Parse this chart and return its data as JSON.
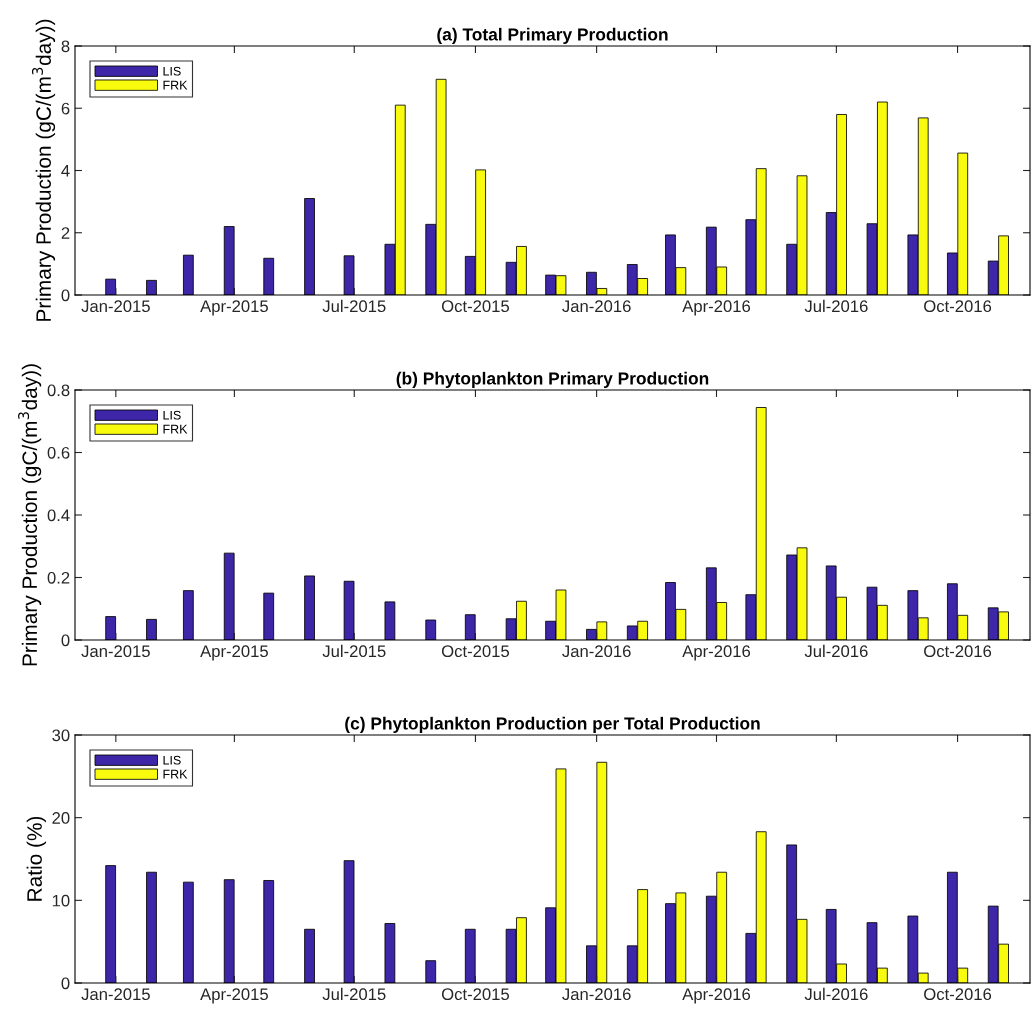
{
  "chart_data": [
    {
      "type": "bar",
      "title": "(a) Total Primary Production",
      "ylabel": "Primary Production (gC/(m$^{3}$day))",
      "x": [
        "2015-01",
        "2015-02",
        "2015-03",
        "2015-04",
        "2015-05",
        "2015-06",
        "2015-07",
        "2015-08",
        "2015-09",
        "2015-10",
        "2015-11",
        "2015-12",
        "2016-01",
        "2016-02",
        "2016-03",
        "2016-04",
        "2016-05",
        "2016-06",
        "2016-07",
        "2016-08",
        "2016-09",
        "2016-10",
        "2016-11"
      ],
      "series": [
        {
          "name": "LIS",
          "color": "#3d26a8",
          "values": [
            0.51,
            0.47,
            1.28,
            2.2,
            1.18,
            3.1,
            1.26,
            1.63,
            2.27,
            1.24,
            1.05,
            0.64,
            0.73,
            0.98,
            1.93,
            2.18,
            2.42,
            1.63,
            2.65,
            2.29,
            1.93,
            1.35,
            1.09
          ]
        },
        {
          "name": "FRK",
          "color": "#f9fb0e",
          "values": [
            null,
            null,
            null,
            null,
            null,
            null,
            null,
            6.1,
            6.93,
            4.02,
            1.56,
            0.62,
            0.21,
            0.53,
            0.88,
            0.9,
            4.06,
            3.83,
            5.8,
            6.2,
            5.69,
            4.56,
            1.9
          ]
        }
      ],
      "xlim": [
        "2014-12-01",
        "2016-11-25"
      ],
      "xticks": [
        {
          "value": "2015-01",
          "label": "Jan-2015"
        },
        {
          "value": "2015-04",
          "label": "Apr-2015"
        },
        {
          "value": "2015-07",
          "label": "Jul-2015"
        },
        {
          "value": "2015-10",
          "label": "Oct-2015"
        },
        {
          "value": "2016-01",
          "label": "Jan-2016"
        },
        {
          "value": "2016-04",
          "label": "Apr-2016"
        },
        {
          "value": "2016-07",
          "label": "Jul-2016"
        },
        {
          "value": "2016-10",
          "label": "Oct-2016"
        }
      ],
      "ylim": [
        0,
        8
      ],
      "yticks": [
        0,
        2,
        4,
        6,
        8
      ],
      "grid": false,
      "legend": "top left"
    },
    {
      "type": "bar",
      "title": "(b) Phytoplankton Primary Production",
      "ylabel": "Primary Production (gC/(m$^{3}$day))",
      "x": [
        "2015-01",
        "2015-02",
        "2015-03",
        "2015-04",
        "2015-05",
        "2015-06",
        "2015-07",
        "2015-08",
        "2015-09",
        "2015-10",
        "2015-11",
        "2015-12",
        "2016-01",
        "2016-02",
        "2016-03",
        "2016-04",
        "2016-05",
        "2016-06",
        "2016-07",
        "2016-08",
        "2016-09",
        "2016-10",
        "2016-11"
      ],
      "series": [
        {
          "name": "LIS",
          "color": "#3d26a8",
          "values": [
            0.075,
            0.066,
            0.158,
            0.278,
            0.15,
            0.205,
            0.188,
            0.122,
            0.064,
            0.081,
            0.068,
            0.06,
            0.034,
            0.045,
            0.184,
            0.231,
            0.145,
            0.272,
            0.237,
            0.169,
            0.158,
            0.18,
            0.103
          ]
        },
        {
          "name": "FRK",
          "color": "#f9fb0e",
          "values": [
            null,
            null,
            null,
            null,
            null,
            null,
            null,
            null,
            null,
            null,
            0.124,
            0.16,
            0.058,
            0.06,
            0.098,
            0.12,
            0.744,
            0.295,
            0.137,
            0.111,
            0.071,
            0.079,
            0.09
          ]
        }
      ],
      "xlim": [
        "2014-12-01",
        "2016-11-25"
      ],
      "xticks": [
        {
          "value": "2015-01",
          "label": "Jan-2015"
        },
        {
          "value": "2015-04",
          "label": "Apr-2015"
        },
        {
          "value": "2015-07",
          "label": "Jul-2015"
        },
        {
          "value": "2015-10",
          "label": "Oct-2015"
        },
        {
          "value": "2016-01",
          "label": "Jan-2016"
        },
        {
          "value": "2016-04",
          "label": "Apr-2016"
        },
        {
          "value": "2016-07",
          "label": "Jul-2016"
        },
        {
          "value": "2016-10",
          "label": "Oct-2016"
        }
      ],
      "ylim": [
        0,
        0.8
      ],
      "yticks": [
        0,
        0.2,
        0.4,
        0.6,
        0.8
      ],
      "grid": false,
      "legend": "top left"
    },
    {
      "type": "bar",
      "title": "(c) Phytoplankton Production per Total Production",
      "ylabel": "Ratio (%)",
      "x": [
        "2015-01",
        "2015-02",
        "2015-03",
        "2015-04",
        "2015-05",
        "2015-06",
        "2015-07",
        "2015-08",
        "2015-09",
        "2015-10",
        "2015-11",
        "2015-12",
        "2016-01",
        "2016-02",
        "2016-03",
        "2016-04",
        "2016-05",
        "2016-06",
        "2016-07",
        "2016-08",
        "2016-09",
        "2016-10",
        "2016-11"
      ],
      "series": [
        {
          "name": "LIS",
          "color": "#3d26a8",
          "values": [
            14.2,
            13.4,
            12.2,
            12.5,
            12.4,
            6.5,
            14.8,
            7.2,
            2.7,
            6.5,
            6.5,
            9.1,
            4.5,
            4.5,
            9.6,
            10.5,
            6.0,
            16.7,
            8.9,
            7.3,
            8.1,
            13.4,
            9.3
          ]
        },
        {
          "name": "FRK",
          "color": "#f9fb0e",
          "values": [
            null,
            null,
            null,
            null,
            null,
            null,
            null,
            null,
            null,
            null,
            7.9,
            25.9,
            26.7,
            11.3,
            10.9,
            13.4,
            18.3,
            7.7,
            2.3,
            1.8,
            1.2,
            1.8,
            4.7
          ]
        }
      ],
      "xlim": [
        "2014-12-01",
        "2016-11-25"
      ],
      "xticks": [
        {
          "value": "2015-01",
          "label": "Jan-2015"
        },
        {
          "value": "2015-04",
          "label": "Apr-2015"
        },
        {
          "value": "2015-07",
          "label": "Jul-2015"
        },
        {
          "value": "2015-10",
          "label": "Oct-2015"
        },
        {
          "value": "2016-01",
          "label": "Jan-2016"
        },
        {
          "value": "2016-04",
          "label": "Apr-2016"
        },
        {
          "value": "2016-07",
          "label": "Jul-2016"
        },
        {
          "value": "2016-10",
          "label": "Oct-2016"
        }
      ],
      "ylim": [
        0,
        30
      ],
      "yticks": [
        0,
        10,
        20,
        30
      ],
      "grid": false,
      "legend": "top left"
    }
  ]
}
